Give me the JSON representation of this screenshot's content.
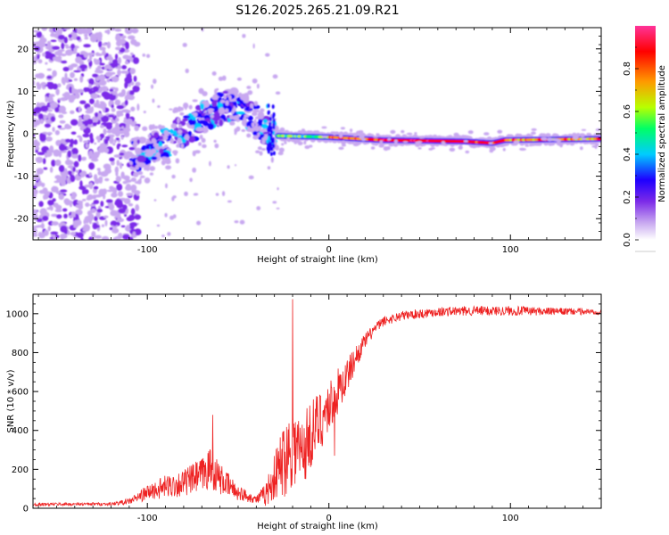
{
  "figure_title": "S126.2025.265.21.09.R21",
  "chart_data": [
    {
      "type": "heatmap",
      "title": "S126.2025.265.21.09.R21",
      "xlabel": "Height of straight line (km)",
      "ylabel": "Frequency (Hz)",
      "xlim": [
        -163,
        150
      ],
      "ylim": [
        -25,
        25
      ],
      "x_ticks": [
        -100,
        0,
        100
      ],
      "x_tick_labels": [
        "-100",
        "0",
        "100"
      ],
      "y_ticks": [
        -20,
        -10,
        0,
        10,
        20
      ],
      "y_tick_labels": [
        "-20",
        "-10",
        "0",
        "10",
        "20"
      ],
      "colorbar": {
        "label": "Normalized spectral amplitude",
        "range": [
          0,
          1
        ],
        "ticks": [
          0,
          0.2,
          0.4,
          0.6,
          0.8
        ],
        "tick_labels": [
          "0.0",
          "0.2",
          "0.4",
          "0.6",
          "0.8"
        ],
        "colors": [
          "#ffffff",
          "#c8a8f0",
          "#7c2ae8",
          "#1e00ff",
          "#00ccff",
          "#00ff66",
          "#b8ff00",
          "#ff9900",
          "#ff0000",
          "#ff3399"
        ]
      },
      "features": {
        "noise_region_x": [
          -163,
          -105
        ],
        "rising_ridge": [
          [
            -105,
            -5
          ],
          [
            -90,
            -2
          ],
          [
            -75,
            2
          ],
          [
            -60,
            6
          ],
          [
            -50,
            7
          ],
          [
            -40,
            3
          ],
          [
            -33,
            0
          ]
        ],
        "carrier_line": [
          [
            -27,
            -0.5
          ],
          [
            0,
            -0.8
          ],
          [
            30,
            -1.5
          ],
          [
            75,
            -1.8
          ],
          [
            90,
            -2.2
          ],
          [
            97,
            -1.5
          ],
          [
            150,
            -1.2
          ]
        ]
      }
    },
    {
      "type": "line",
      "title": "",
      "xlabel": "Height of straight line (km)",
      "ylabel": "SNR (10 * v/v)",
      "xlim": [
        -163,
        150
      ],
      "ylim": [
        0,
        1100
      ],
      "x_ticks": [
        -100,
        0,
        100
      ],
      "x_tick_labels": [
        "-100",
        "0",
        "100"
      ],
      "y_ticks": [
        0,
        200,
        400,
        600,
        800,
        1000
      ],
      "y_tick_labels": [
        "0",
        "200",
        "400",
        "600",
        "800",
        "1000"
      ],
      "series": [
        {
          "name": "SNR",
          "color": "#ee2222",
          "envelope_x": [
            -163,
            -120,
            -110,
            -100,
            -90,
            -80,
            -70,
            -65,
            -60,
            -50,
            -40,
            -35,
            -30,
            -25,
            -20,
            -15,
            -10,
            -5,
            0,
            5,
            10,
            15,
            20,
            25,
            30,
            40,
            50,
            60,
            80,
            100,
            120,
            150
          ],
          "envelope_mean": [
            20,
            22,
            35,
            80,
            110,
            130,
            170,
            210,
            150,
            80,
            45,
            70,
            160,
            250,
            330,
            280,
            380,
            450,
            520,
            600,
            680,
            780,
            860,
            920,
            960,
            990,
            1000,
            1010,
            1015,
            1015,
            1012,
            1010
          ],
          "envelope_spread": [
            8,
            8,
            15,
            40,
            60,
            70,
            90,
            110,
            80,
            40,
            20,
            60,
            120,
            200,
            220,
            200,
            180,
            160,
            140,
            120,
            90,
            60,
            40,
            30,
            25,
            25,
            25,
            25,
            25,
            25,
            20,
            15
          ],
          "peak_annotations": [
            [
              -64,
              480
            ],
            [
              -20,
              1075
            ],
            [
              3,
              270
            ]
          ]
        }
      ]
    }
  ]
}
